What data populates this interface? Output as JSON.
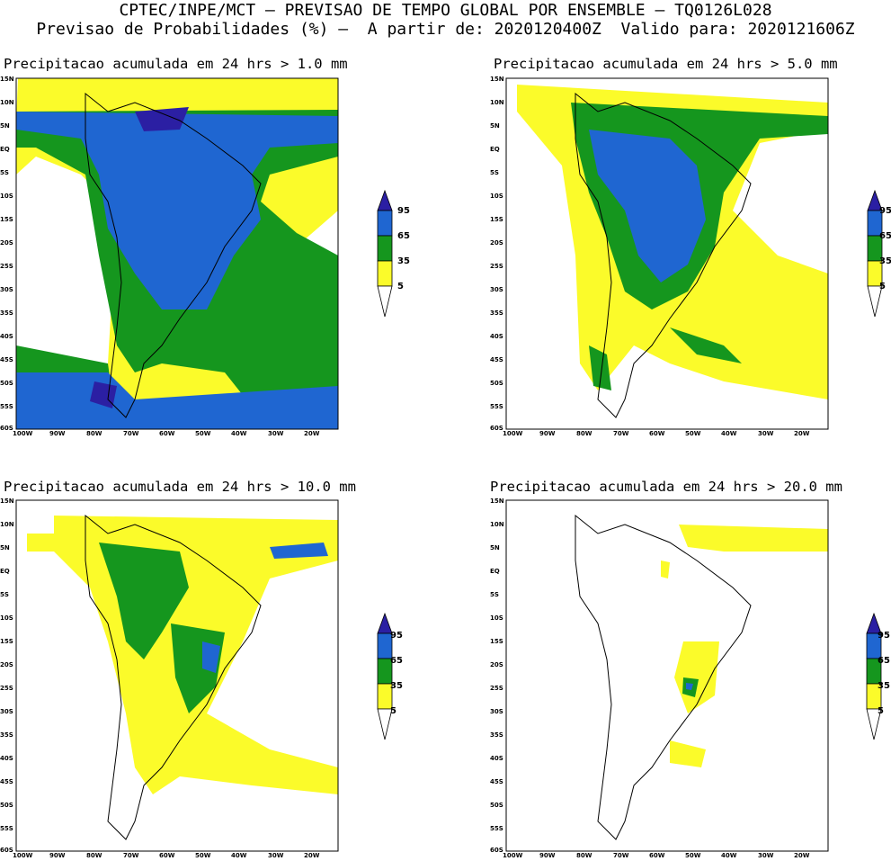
{
  "header": {
    "line1": "CPTEC/INPE/MCT – PREVISAO DE TEMPO GLOBAL POR ENSEMBLE – TQ0126L028",
    "line2": "Previsao de Probabilidades (%) –  A partir de: 2020120400Z  Valido para: 2020121606Z"
  },
  "axes": {
    "lat_labels": [
      "15N",
      "10N",
      "5N",
      "EQ",
      "5S",
      "10S",
      "15S",
      "20S",
      "25S",
      "30S",
      "35S",
      "40S",
      "45S",
      "50S",
      "55S",
      "60S"
    ],
    "lon_labels": [
      "100W",
      "90W",
      "80W",
      "70W",
      "60W",
      "50W",
      "40W",
      "30W",
      "20W"
    ]
  },
  "legend": {
    "levels": [
      "95",
      "65",
      "35",
      "5"
    ],
    "colors": {
      "level95": "#2b1fa3",
      "level65": "#1f66d1",
      "level35": "#15961e",
      "level5": "#fbfb2a"
    }
  },
  "panels": [
    {
      "title": "Precipitacao acumulada em 24 hrs > 1.0 mm"
    },
    {
      "title": "Precipitacao acumulada em 24 hrs > 5.0 mm"
    },
    {
      "title": "Precipitacao acumulada em 24 hrs > 10.0 mm"
    },
    {
      "title": "Precipitacao acumulada em 24 hrs > 20.0 mm"
    }
  ]
}
